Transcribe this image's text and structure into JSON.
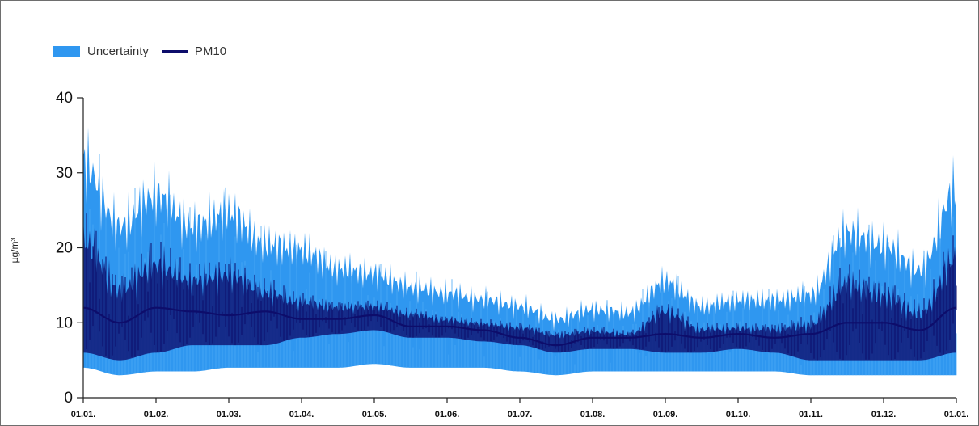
{
  "chart_data": {
    "type": "area",
    "ylabel": "µg/m³",
    "ylim": [
      0,
      40
    ],
    "y_ticks": [
      0,
      10,
      20,
      30,
      40
    ],
    "x_tick_labels": [
      "01.01.",
      "01.02.",
      "01.03.",
      "01.04.",
      "01.05.",
      "01.06.",
      "01.07.",
      "01.08.",
      "01.09.",
      "01.10.",
      "01.11.",
      "01.12.",
      "01.01."
    ],
    "legend_position": "top-left",
    "grid": false,
    "legend": {
      "uncertainty_label": "Uncertainty",
      "pm10_label": "PM10"
    },
    "colors": {
      "uncertainty": "#2f97f0",
      "pm10": "#0d0d6b",
      "axis": "#222222"
    },
    "x": [
      "01.01.",
      "15.01.",
      "01.02.",
      "15.02.",
      "01.03.",
      "15.03.",
      "01.04.",
      "15.04.",
      "01.05.",
      "15.05.",
      "01.06.",
      "15.06.",
      "01.07.",
      "15.07.",
      "01.08.",
      "15.08.",
      "01.09.",
      "15.09.",
      "01.10.",
      "15.10.",
      "01.11.",
      "15.11.",
      "01.12.",
      "15.12.",
      "01.01."
    ],
    "series": [
      {
        "name": "Uncertainty",
        "role": "band",
        "lower": [
          4,
          3,
          3.5,
          3.5,
          4,
          4,
          4,
          4,
          4.5,
          4,
          4,
          4,
          3.5,
          3,
          3.5,
          3.5,
          3.5,
          3.5,
          3.5,
          3.5,
          3,
          3,
          3,
          3,
          3
        ],
        "upper": [
          37,
          27,
          32,
          27,
          29,
          24,
          23,
          20,
          19,
          17,
          16,
          15,
          14,
          12,
          13.5,
          13,
          18,
          14,
          15,
          15,
          16,
          26,
          24,
          20,
          33
        ]
      },
      {
        "name": "PM10",
        "role": "line",
        "low": [
          6,
          5,
          6,
          7,
          7,
          7,
          8,
          8.5,
          9,
          8,
          8,
          7.5,
          7,
          6,
          6.5,
          6.5,
          6,
          6,
          6.5,
          6,
          5,
          5,
          5,
          5,
          6
        ],
        "high": [
          25,
          17,
          21,
          18,
          19,
          16,
          14,
          13,
          13,
          12,
          11,
          10.5,
          10,
          9,
          9.5,
          9,
          13,
          10,
          10,
          10,
          11,
          18,
          16,
          13,
          22
        ],
        "mean": [
          12,
          10,
          12,
          11.5,
          11,
          11.5,
          10.5,
          10.5,
          11,
          9.5,
          9.5,
          9,
          8,
          7,
          8,
          8,
          8.5,
          8,
          8.5,
          8,
          8.5,
          10,
          10,
          9,
          12
        ]
      }
    ]
  }
}
